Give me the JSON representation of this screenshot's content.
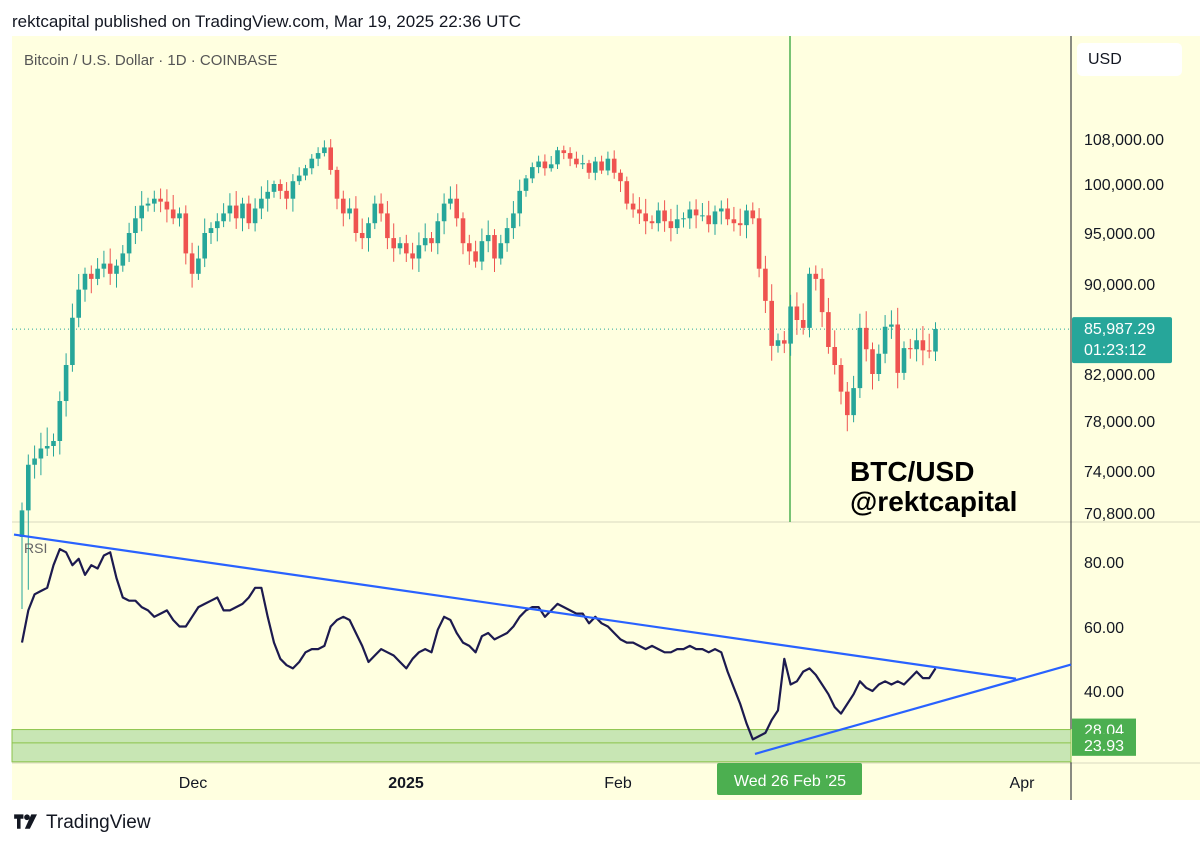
{
  "header": {
    "published_text": "rektcapital published on TradingView.com, Mar 19, 2025 22:36 UTC"
  },
  "symbol_line": "Bitcoin / U.S. Dollar · 1D · COINBASE",
  "currency_button": "USD",
  "overlay": {
    "line1": "BTC/USD",
    "line2": "@rektcapital"
  },
  "footer": {
    "brand": "TradingView",
    "logo_icon": "tradingview-logo-icon"
  },
  "colors": {
    "background": "#ffffe0",
    "up_candle": "#26a69a",
    "down_candle": "#ef5350",
    "rsi_line": "#1c1a4f",
    "trendline": "#2962ff",
    "vertical_marker": "#4caf50",
    "oversold_zone": "#c8e6b4",
    "price_tag": "#26a69a"
  },
  "chart_data": [
    {
      "type": "candlestick",
      "title": "Bitcoin / U.S. Dollar · 1D · COINBASE",
      "y_ticks": [
        "108,000.00",
        "100,000.00",
        "95,000.00",
        "90,000.00",
        "82,000.00",
        "78,000.00",
        "74,000.00",
        "70,800.00"
      ],
      "x_ticks": [
        "Dec",
        "2025",
        "Feb",
        "Apr"
      ],
      "ylim": [
        70800,
        110500
      ],
      "current_price": {
        "value": "85,987.29",
        "countdown": "01:23:12"
      },
      "vertical_marker_date": "Wed 26 Feb '25",
      "series_close": [
        71000,
        74500,
        75000,
        75800,
        76000,
        76400,
        79700,
        82800,
        87000,
        89500,
        91000,
        90500,
        91500,
        92000,
        91000,
        91800,
        93000,
        95000,
        96500,
        97800,
        98000,
        98500,
        98200,
        97400,
        96500,
        97000,
        93000,
        91000,
        92500,
        95000,
        95500,
        96200,
        97000,
        97800,
        96500,
        98000,
        96000,
        97500,
        98500,
        99200,
        100000,
        99300,
        98500,
        100500,
        101500,
        102800,
        104500,
        105500,
        106500,
        102500,
        98500,
        97000,
        97500,
        95000,
        94500,
        96000,
        98000,
        97000,
        94500,
        93500,
        94000,
        93000,
        92500,
        93800,
        94500,
        94000,
        96200,
        98000,
        98500,
        96500,
        94000,
        93200,
        92200,
        94200,
        94800,
        92500,
        94000,
        95500,
        97000,
        99300,
        101000,
        103000,
        104000,
        102800,
        103500,
        106000,
        105500,
        104500,
        103500,
        103700,
        102000,
        104000,
        102400,
        104500,
        102000,
        100500,
        98000,
        97400,
        97000,
        96200,
        96000,
        97300,
        96200,
        95500,
        96400,
        96500,
        97400,
        96800,
        96800,
        95900,
        97200,
        97500,
        96400,
        96000,
        95800,
        97300,
        96500,
        91500,
        88500,
        84500,
        85000,
        84700,
        88000,
        86800,
        86100,
        91000,
        90500,
        87500,
        84400,
        82800,
        80500,
        78500,
        80800,
        86100,
        84200,
        82000,
        83800,
        86200,
        86400,
        82100,
        84300,
        84200,
        85000,
        84100,
        84000,
        86000
      ]
    },
    {
      "type": "line",
      "title": "RSI",
      "y_ticks": [
        "80.00",
        "60.00",
        "40.00"
      ],
      "oversold_zone": {
        "top": "28.04",
        "bottom": "23.93"
      },
      "ylim": [
        18,
        88
      ],
      "series": [
        55,
        65,
        70,
        71,
        72,
        79,
        84,
        83,
        79,
        81,
        76,
        79,
        78,
        82,
        83,
        75,
        69,
        68,
        68,
        66,
        65,
        63,
        64,
        65,
        62,
        60,
        60,
        63,
        66,
        67,
        68,
        69,
        65,
        65,
        66,
        67,
        69,
        72,
        72,
        63,
        55,
        50,
        48,
        47,
        49,
        52,
        53,
        53,
        54,
        60,
        62,
        63,
        62,
        58,
        54,
        49,
        51,
        53,
        52,
        51,
        49,
        47,
        50,
        52,
        53,
        52,
        59,
        63,
        62,
        58,
        55,
        54,
        52,
        57,
        58,
        56,
        57,
        58,
        60,
        63,
        65,
        66,
        66,
        63,
        65,
        67,
        66,
        65,
        64,
        64,
        61,
        63,
        61,
        60,
        58,
        56,
        55,
        55,
        54,
        53,
        54,
        53,
        52,
        52,
        53,
        53,
        54,
        53,
        53,
        52,
        53,
        52,
        46,
        41,
        36,
        30,
        25,
        26,
        27,
        31,
        34,
        50,
        42,
        43,
        46,
        47,
        45,
        42,
        39,
        35,
        33,
        36,
        39,
        43,
        41,
        40,
        42,
        43,
        42,
        43,
        42,
        44,
        46,
        44,
        44,
        47
      ]
    }
  ]
}
